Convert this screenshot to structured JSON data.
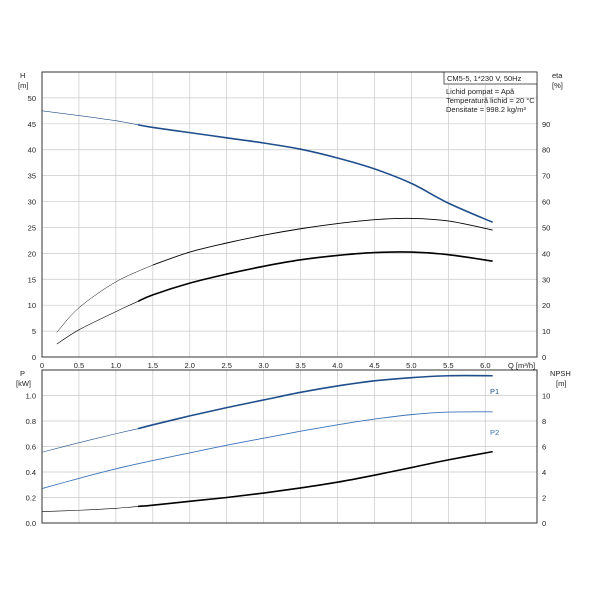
{
  "colors": {
    "blue": "#1f4e8c",
    "light_blue": "#3a73b8",
    "black": "#000000",
    "grid": "#c8c8c8"
  },
  "chart_data": [
    {
      "type": "line",
      "title": "CM5-5, 1*230 V, 50Hz",
      "info": [
        "Lichid pompat = Apă",
        "Temperatură lichid = 20 °C",
        "Densitate = 998.2 kg/m³"
      ],
      "xlabel": "Q [m³/h]",
      "ylabel_top": "H",
      "ylabel_unit": "[m]",
      "y2label_top": "eta",
      "y2label_unit": "[%]",
      "xlim": [
        0,
        6.7
      ],
      "ylim": [
        0,
        55
      ],
      "y2lim": [
        0,
        110
      ],
      "xticks": [
        "0",
        "0.5",
        "1.0",
        "1.5",
        "2.0",
        "2.5",
        "3.0",
        "3.5",
        "4.0",
        "4.5",
        "5.0",
        "5.5",
        "6.0"
      ],
      "yticks": [
        "0",
        "5",
        "10",
        "15",
        "20",
        "25",
        "30",
        "35",
        "40",
        "45",
        "50"
      ],
      "y2ticks": [
        "0",
        "10",
        "20",
        "30",
        "40",
        "50",
        "60",
        "70",
        "80",
        "90"
      ],
      "grid": true,
      "series": [
        {
          "key": "h",
          "axis": "left",
          "color": "#1f4e8c",
          "x": [
            0,
            0.5,
            1.0,
            1.3,
            1.5,
            2.0,
            2.5,
            3.0,
            3.5,
            4.0,
            4.5,
            5.0,
            5.5,
            6.1
          ],
          "values": [
            47.5,
            46.6,
            45.6,
            44.8,
            44.3,
            43.3,
            42.3,
            41.3,
            40.1,
            38.4,
            36.3,
            33.5,
            29.7,
            26.0
          ]
        },
        {
          "key": "eta_thin",
          "axis": "right",
          "color": "#000000",
          "x": [
            0.2,
            0.5,
            1.0,
            1.5,
            2.0,
            2.5,
            3.0,
            3.5,
            4.0,
            4.5,
            5.0,
            5.5,
            6.1
          ],
          "values": [
            9.5,
            19,
            29,
            35.5,
            40.5,
            44,
            47,
            49.5,
            51.5,
            53,
            53.5,
            52.5,
            49.0
          ]
        },
        {
          "key": "eta_thick",
          "axis": "right",
          "color": "#000000",
          "x": [
            0.2,
            0.5,
            1.0,
            1.3,
            1.5,
            2.0,
            2.5,
            3.0,
            3.5,
            4.0,
            4.5,
            5.0,
            5.5,
            6.1
          ],
          "values": [
            5,
            10.5,
            17.5,
            21.5,
            24,
            28.5,
            32,
            35,
            37.5,
            39.2,
            40.3,
            40.5,
            39.5,
            37.0
          ]
        }
      ]
    },
    {
      "type": "line",
      "ylabel_top": "P",
      "ylabel_unit": "[kW]",
      "y2label_top": "NPSH",
      "y2label_unit": "[m]",
      "xlim": [
        0,
        6.7
      ],
      "ylim": [
        0,
        1.2
      ],
      "y2lim": [
        0,
        12
      ],
      "yticks": [
        "0.0",
        "0.2",
        "0.4",
        "0.6",
        "0.8",
        "1.0"
      ],
      "y2ticks": [
        "0",
        "2",
        "4",
        "6",
        "8",
        "10"
      ],
      "grid": true,
      "series": [
        {
          "key": "p1",
          "name": "P1",
          "axis": "left",
          "color": "#1f4e8c",
          "x": [
            0,
            0.5,
            1.0,
            1.3,
            1.5,
            2.0,
            2.5,
            3.0,
            3.5,
            4.0,
            4.5,
            5.0,
            5.5,
            6.1
          ],
          "values": [
            0.555,
            0.63,
            0.7,
            0.74,
            0.77,
            0.84,
            0.905,
            0.965,
            1.025,
            1.075,
            1.115,
            1.14,
            1.155,
            1.155
          ]
        },
        {
          "key": "p2",
          "name": "P2",
          "axis": "left",
          "color": "#3a73b8",
          "x": [
            0,
            0.5,
            1.0,
            1.5,
            2.0,
            2.5,
            3.0,
            3.5,
            4.0,
            4.5,
            5.0,
            5.5,
            6.1
          ],
          "values": [
            0.27,
            0.35,
            0.425,
            0.49,
            0.55,
            0.61,
            0.665,
            0.72,
            0.77,
            0.815,
            0.85,
            0.87,
            0.872
          ]
        },
        {
          "key": "npsh",
          "axis": "right",
          "color": "#000000",
          "x": [
            0,
            0.5,
            1.0,
            1.3,
            1.5,
            2.0,
            2.5,
            3.0,
            3.5,
            4.0,
            4.5,
            5.0,
            5.5,
            6.1
          ],
          "values": [
            0.9,
            1.0,
            1.15,
            1.3,
            1.4,
            1.7,
            2.0,
            2.35,
            2.75,
            3.2,
            3.75,
            4.35,
            4.95,
            5.6
          ]
        }
      ]
    }
  ]
}
